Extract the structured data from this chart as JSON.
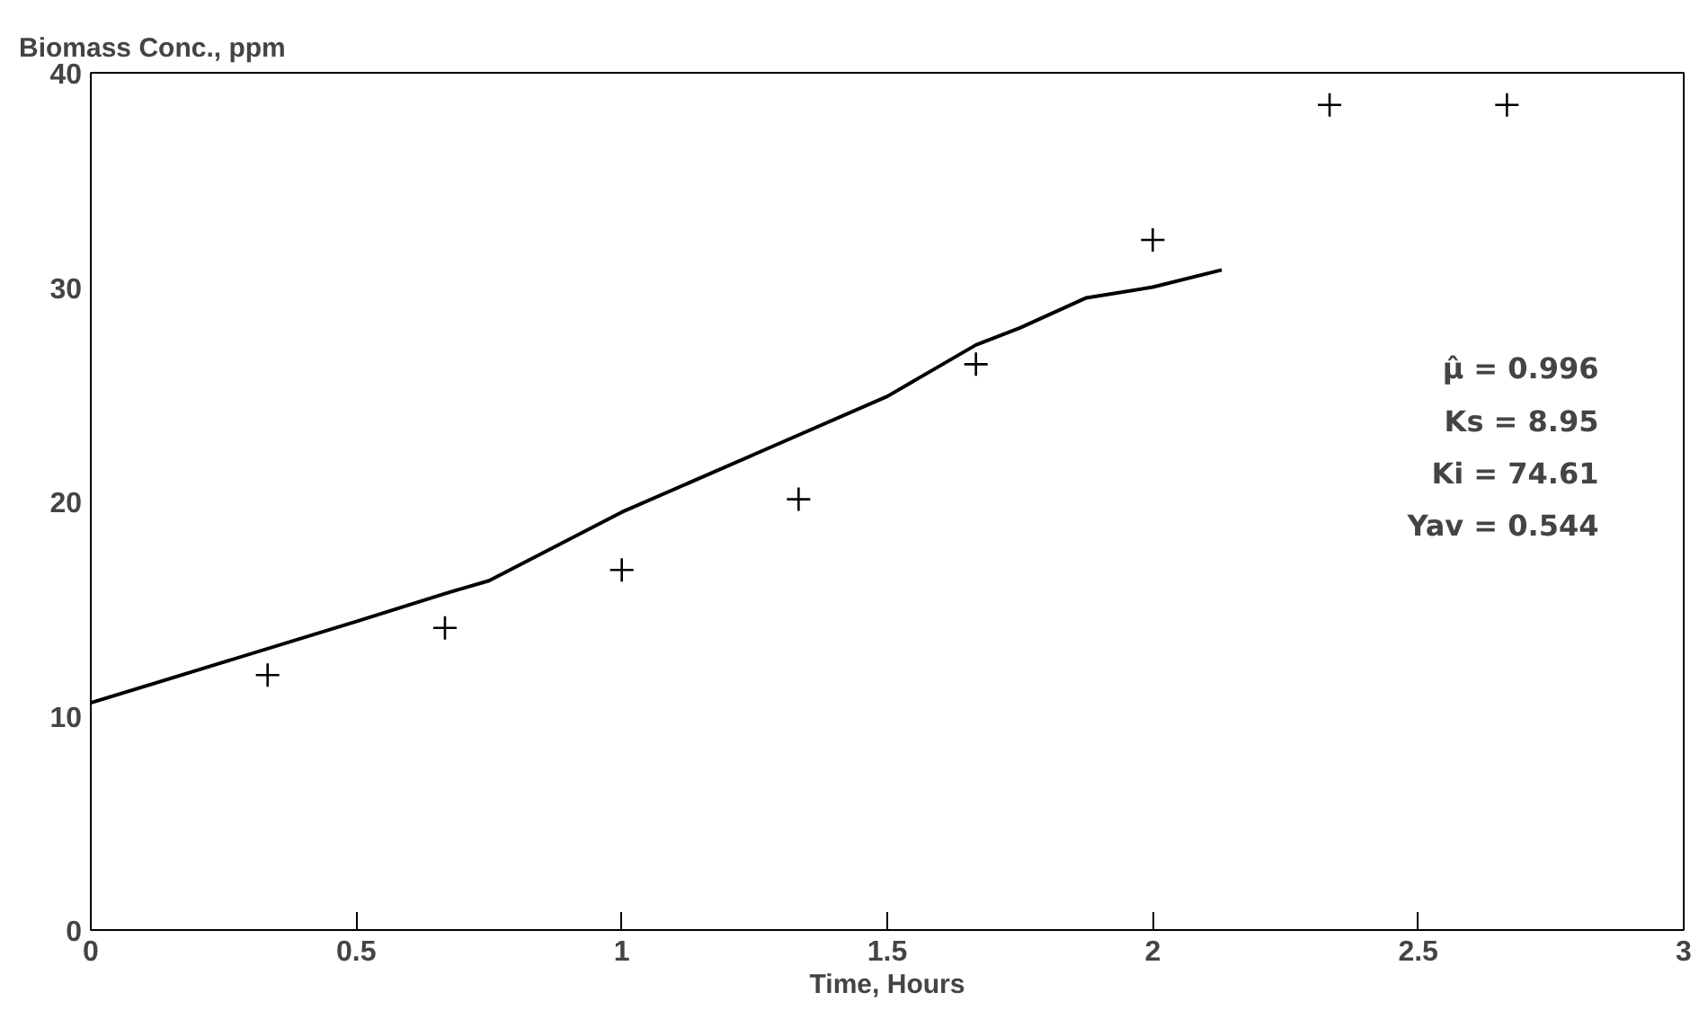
{
  "chart_data": {
    "type": "scatter",
    "ylabel": "Biomass Conc., ppm",
    "xlabel": "Time, Hours",
    "series": [
      {
        "color": "#000000",
        "marker": "cross",
        "x": [
          0.333,
          0.667,
          1.0,
          1.333,
          1.667,
          2.0,
          2.333,
          2.667
        ],
        "values": [
          11.9,
          14.1,
          16.8,
          20.1,
          26.4,
          32.2,
          38.5,
          38.5
        ]
      },
      {
        "type": "line",
        "color": "#000000",
        "line_style": "solid",
        "x": [
          0,
          0.25,
          0.5,
          0.667,
          0.75,
          1.0,
          1.25,
          1.5,
          1.667,
          1.75,
          1.875,
          2.0,
          2.13
        ],
        "values": [
          10.6,
          12.5,
          14.4,
          15.7,
          16.3,
          19.5,
          22.2,
          24.9,
          27.3,
          28.1,
          29.5,
          30.0,
          30.8
        ]
      }
    ],
    "annotations": [
      "μ̂ = 0.996",
      "Ks = 8.95",
      "Ki = 74.61",
      "Yav = 0.544"
    ],
    "xlim": [
      0,
      3
    ],
    "xticks": [
      0,
      0.5,
      1,
      1.5,
      2,
      2.5,
      3
    ],
    "ylim": [
      0,
      40
    ],
    "yticks": [
      0,
      10,
      20,
      30,
      40
    ],
    "grid": false
  }
}
